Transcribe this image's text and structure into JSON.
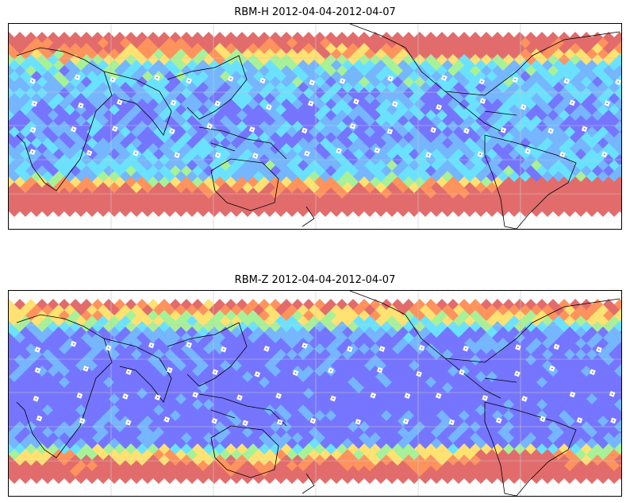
{
  "figure": {
    "panels": [
      {
        "title": "RBM-H 2012-04-04-2012-04-07",
        "variant": "H"
      },
      {
        "title": "RBM-Z 2012-04-04-2012-04-07",
        "variant": "Z"
      }
    ]
  },
  "colors": {
    "low": "#6a6aff",
    "low_mid": "#6ab0ff",
    "mid": "#5ee0ff",
    "mid_high": "#a0f090",
    "high": "#ffe066",
    "very_high": "#ff8a50",
    "max": "#e06060",
    "station_marker": "#ffffff",
    "coastline": "#000000",
    "gridline": "#c8c8c8"
  }
}
